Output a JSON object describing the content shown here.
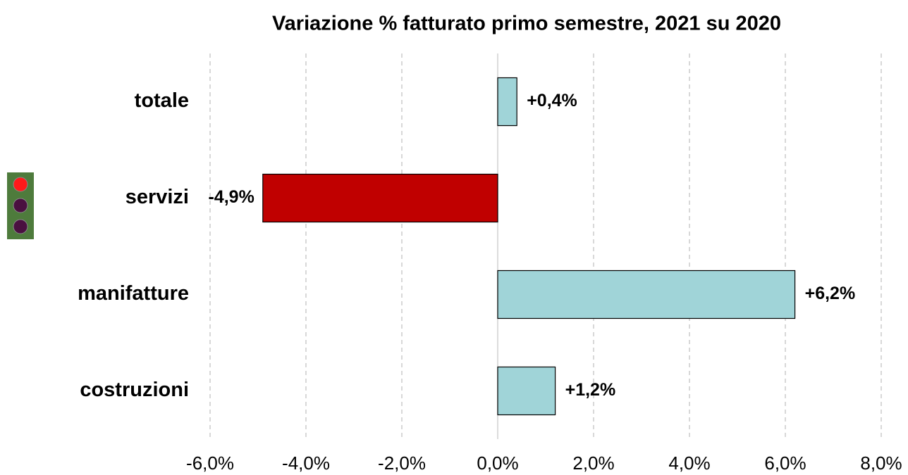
{
  "chart_data": {
    "type": "barh",
    "title": "Variazione % fatturato primo semestre, 2021 su 2020",
    "categories": [
      "totale",
      "servizi",
      "manifatture",
      "costruzioni"
    ],
    "values": [
      0.4,
      -4.9,
      6.2,
      1.2
    ],
    "value_labels": [
      "+0,4%",
      "-4,9%",
      "+6,2%",
      "+1,2%"
    ],
    "colors": [
      "#a0d4d8",
      "#c00000",
      "#a0d4d8",
      "#a0d4d8"
    ],
    "xlim": [
      -6,
      8
    ],
    "xticks": [
      {
        "value": -6,
        "label": "-6,0%"
      },
      {
        "value": -4,
        "label": "-4,0%"
      },
      {
        "value": -2,
        "label": "-2,0%"
      },
      {
        "value": 0,
        "label": "0,0%"
      },
      {
        "value": 2,
        "label": "2,0%"
      },
      {
        "value": 4,
        "label": "4,0%"
      },
      {
        "value": 6,
        "label": "6,0%"
      },
      {
        "value": 8,
        "label": "8,0%"
      }
    ],
    "grid": true
  }
}
